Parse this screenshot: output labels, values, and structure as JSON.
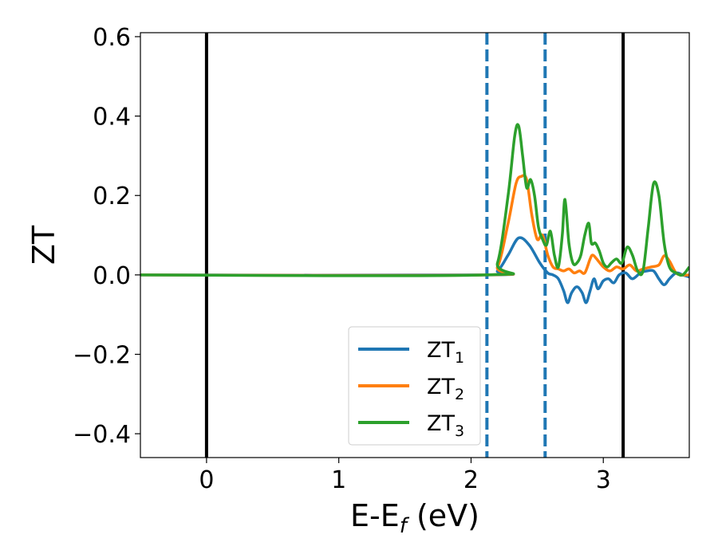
{
  "chart_data": {
    "type": "line",
    "xlabel": {
      "main": "E-E",
      "sub": "f",
      "unit": " (eV)"
    },
    "ylabel": "ZT",
    "xlim": [
      -0.5,
      3.65
    ],
    "ylim": [
      -0.46,
      0.61
    ],
    "xticks": [
      0,
      1,
      2,
      3
    ],
    "xtick_labels": [
      "0",
      "1",
      "2",
      "3"
    ],
    "yticks": [
      0.6,
      0.4,
      0.2,
      0.0,
      -0.2,
      -0.4
    ],
    "ytick_labels": [
      "0.6",
      "0.4",
      "0.2",
      "0.0",
      "−0.2",
      "−0.4"
    ],
    "grid": false,
    "legend_position": "lower-center",
    "vlines": [
      {
        "x": 0.0,
        "style": "solid",
        "color": "#000000"
      },
      {
        "x": 3.15,
        "style": "solid",
        "color": "#000000"
      },
      {
        "x": 2.12,
        "style": "dashed",
        "color": "#1f77b4"
      },
      {
        "x": 2.56,
        "style": "dashed",
        "color": "#1f77b4"
      }
    ],
    "series": [
      {
        "name": "ZT",
        "name_sub": "1",
        "color": "#1f77b4",
        "x": [
          -0.5,
          2.1,
          2.2,
          2.28,
          2.36,
          2.44,
          2.52,
          2.58,
          2.62,
          2.66,
          2.7,
          2.73,
          2.76,
          2.8,
          2.84,
          2.87,
          2.9,
          2.93,
          2.96,
          3.0,
          3.04,
          3.08,
          3.12,
          3.17,
          3.22,
          3.28,
          3.33,
          3.38,
          3.42,
          3.46,
          3.5,
          3.55,
          3.6,
          3.65
        ],
        "y": [
          0.0,
          0.0,
          0.01,
          0.05,
          0.093,
          0.075,
          0.03,
          0.005,
          0.0,
          -0.01,
          -0.04,
          -0.07,
          -0.045,
          -0.03,
          -0.045,
          -0.07,
          -0.04,
          -0.01,
          -0.035,
          -0.015,
          -0.01,
          -0.02,
          0.0,
          0.005,
          -0.01,
          0.005,
          0.01,
          0.01,
          -0.01,
          -0.025,
          -0.01,
          0.005,
          0.0,
          -0.005
        ]
      },
      {
        "name": "ZT",
        "name_sub": "2",
        "color": "#ff7f0e",
        "x": [
          -0.5,
          2.1,
          2.2,
          2.28,
          2.34,
          2.38,
          2.42,
          2.46,
          2.5,
          2.54,
          2.58,
          2.62,
          2.66,
          2.7,
          2.74,
          2.78,
          2.82,
          2.86,
          2.9,
          2.92,
          2.95,
          3.0,
          3.05,
          3.1,
          3.15,
          3.2,
          3.25,
          3.3,
          3.36,
          3.42,
          3.46,
          3.5,
          3.55,
          3.6,
          3.65
        ],
        "y": [
          0.0,
          0.0,
          0.02,
          0.13,
          0.23,
          0.248,
          0.24,
          0.15,
          0.09,
          0.1,
          0.05,
          0.02,
          0.015,
          0.01,
          0.015,
          0.005,
          0.01,
          0.005,
          0.04,
          0.05,
          0.04,
          0.02,
          0.01,
          0.02,
          0.015,
          0.025,
          0.01,
          0.015,
          0.02,
          0.025,
          0.048,
          0.035,
          0.005,
          0.0,
          0.0
        ]
      },
      {
        "name": "ZT",
        "name_sub": "3",
        "color": "#2ca02c",
        "x": [
          -0.5,
          2.1,
          2.2,
          2.28,
          2.33,
          2.36,
          2.39,
          2.42,
          2.45,
          2.48,
          2.51,
          2.54,
          2.57,
          2.6,
          2.63,
          2.66,
          2.69,
          2.71,
          2.74,
          2.77,
          2.8,
          2.83,
          2.86,
          2.89,
          2.91,
          2.94,
          2.97,
          3.0,
          3.03,
          3.06,
          3.1,
          3.14,
          3.18,
          3.22,
          3.26,
          3.3,
          3.34,
          3.38,
          3.42,
          3.46,
          3.5,
          3.55,
          3.6,
          3.65
        ],
        "y": [
          0.0,
          0.0,
          0.03,
          0.2,
          0.35,
          0.375,
          0.3,
          0.22,
          0.24,
          0.2,
          0.12,
          0.09,
          0.075,
          0.11,
          0.05,
          0.02,
          0.1,
          0.19,
          0.08,
          0.03,
          0.03,
          0.05,
          0.1,
          0.13,
          0.08,
          0.08,
          0.06,
          0.03,
          0.02,
          0.03,
          0.04,
          0.03,
          0.07,
          0.05,
          0.01,
          0.01,
          0.12,
          0.23,
          0.2,
          0.08,
          0.02,
          0.005,
          0.0,
          0.02
        ]
      }
    ]
  }
}
